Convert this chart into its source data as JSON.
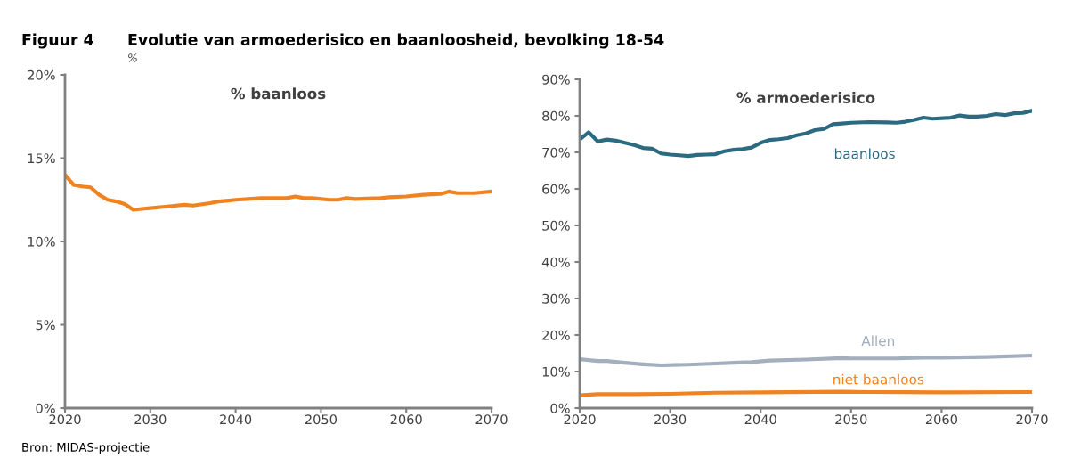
{
  "chart_data": [
    {
      "type": "line",
      "title": "% baanloos",
      "ylabel": "%",
      "annotations": [
        "Figuur 4",
        "Evolutie van armoederisico en baanloosheid, bevolking 18-54",
        "Bron: MIDAS-projectie"
      ],
      "xlim": [
        2020,
        2070
      ],
      "xticks": [
        2020,
        2030,
        2040,
        2050,
        2060,
        2070
      ],
      "ylim": [
        0,
        20
      ],
      "yticks": [
        {
          "value": 0,
          "label": "0%"
        },
        {
          "value": 5,
          "label": "5%"
        },
        {
          "value": 10,
          "label": "10%"
        },
        {
          "value": 15,
          "label": "15%"
        },
        {
          "value": 20,
          "label": "20%"
        }
      ],
      "grid": false,
      "legend": false,
      "series": [
        {
          "color": "#f08220",
          "x": [
            2020,
            2021,
            2022,
            2023,
            2024,
            2025,
            2026,
            2027,
            2028,
            2029,
            2030,
            2032,
            2034,
            2035,
            2037,
            2038,
            2040,
            2043,
            2045,
            2046,
            2047,
            2048,
            2049,
            2051,
            2052,
            2053,
            2054,
            2057,
            2058,
            2060,
            2062,
            2064,
            2065,
            2066,
            2068,
            2070
          ],
          "values": [
            14.0,
            13.4,
            13.3,
            13.25,
            12.8,
            12.5,
            12.4,
            12.25,
            11.9,
            11.95,
            12.0,
            12.1,
            12.2,
            12.15,
            12.3,
            12.4,
            12.5,
            12.6,
            12.6,
            12.6,
            12.7,
            12.6,
            12.6,
            12.5,
            12.5,
            12.6,
            12.55,
            12.6,
            12.65,
            12.7,
            12.8,
            12.85,
            13.0,
            12.9,
            12.9,
            13.0
          ]
        }
      ]
    },
    {
      "type": "line",
      "title": "% armoederisico",
      "xlim": [
        2020,
        2070
      ],
      "xticks": [
        2020,
        2030,
        2040,
        2050,
        2060,
        2070
      ],
      "ylim": [
        0,
        90
      ],
      "yticks": [
        {
          "value": 0,
          "label": "0%"
        },
        {
          "value": 10,
          "label": "10%"
        },
        {
          "value": 20,
          "label": "20%"
        },
        {
          "value": 30,
          "label": "30%"
        },
        {
          "value": 40,
          "label": "40%"
        },
        {
          "value": 50,
          "label": "50%"
        },
        {
          "value": 60,
          "label": "60%"
        },
        {
          "value": 70,
          "label": "70%"
        },
        {
          "value": 80,
          "label": "80%"
        },
        {
          "value": 90,
          "label": "90%"
        }
      ],
      "grid": false,
      "legend": false,
      "series": [
        {
          "name": "baanloos",
          "color": "#2b6a80",
          "x": [
            2020,
            2021,
            2022,
            2023,
            2024,
            2025,
            2026,
            2027,
            2028,
            2029,
            2030,
            2031,
            2032,
            2033,
            2034,
            2035,
            2036,
            2037,
            2038,
            2039,
            2040,
            2041,
            2042,
            2043,
            2044,
            2045,
            2046,
            2047,
            2048,
            2049,
            2050,
            2052,
            2054,
            2055,
            2056,
            2057,
            2058,
            2059,
            2061,
            2062,
            2063,
            2064,
            2065,
            2066,
            2067,
            2068,
            2069,
            2070
          ],
          "values": [
            73.5,
            75.5,
            73.0,
            73.5,
            73.2,
            72.6,
            72.0,
            71.2,
            71.0,
            69.7,
            69.4,
            69.2,
            69.0,
            69.3,
            69.4,
            69.5,
            70.3,
            70.7,
            70.9,
            71.3,
            72.6,
            73.4,
            73.6,
            73.9,
            74.7,
            75.2,
            76.1,
            76.4,
            77.7,
            77.9,
            78.1,
            78.3,
            78.2,
            78.1,
            78.4,
            78.9,
            79.5,
            79.2,
            79.5,
            80.1,
            79.8,
            79.8,
            80.0,
            80.5,
            80.2,
            80.7,
            80.8,
            81.4
          ]
        },
        {
          "name": "Allen",
          "color": "#a3afbd",
          "x": [
            2020,
            2022,
            2023,
            2025,
            2027,
            2029,
            2032,
            2035,
            2037,
            2039,
            2041,
            2045,
            2049,
            2050,
            2055,
            2058,
            2060,
            2065,
            2070
          ],
          "values": [
            13.4,
            12.9,
            12.9,
            12.4,
            12.0,
            11.7,
            11.9,
            12.2,
            12.4,
            12.6,
            13.0,
            13.3,
            13.7,
            13.6,
            13.6,
            13.8,
            13.8,
            14.0,
            14.4
          ]
        },
        {
          "name": "niet baanloos",
          "color": "#f08220",
          "x": [
            2020,
            2022,
            2026,
            2030,
            2035,
            2040,
            2049,
            2052,
            2060,
            2070
          ],
          "values": [
            3.5,
            3.8,
            3.8,
            3.9,
            4.2,
            4.3,
            4.5,
            4.4,
            4.3,
            4.4
          ]
        }
      ]
    }
  ]
}
